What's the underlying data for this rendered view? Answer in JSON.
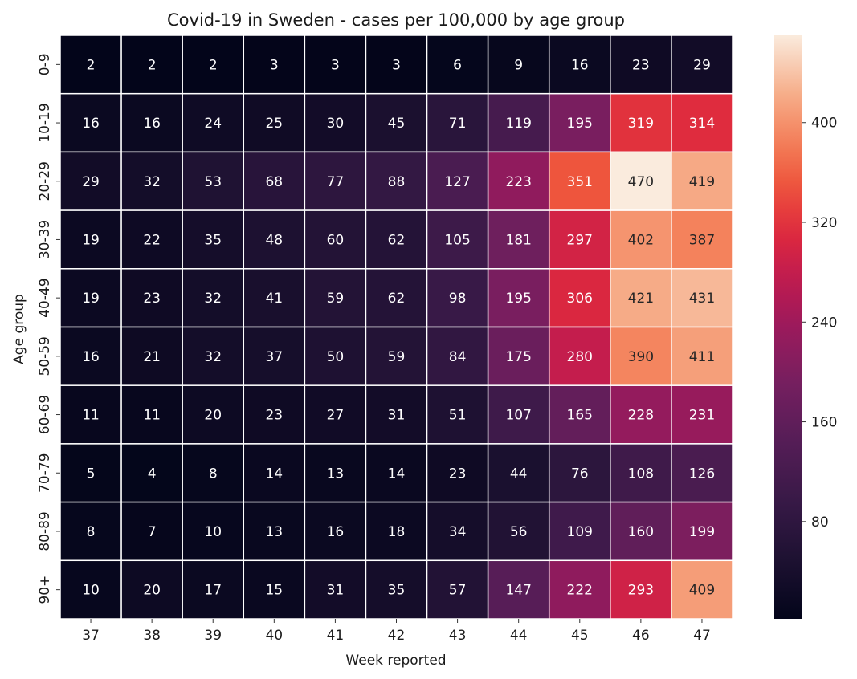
{
  "chart_data": {
    "type": "heatmap",
    "title": "Covid-19 in Sweden - cases per 100,000 by age group",
    "xlabel": "Week reported",
    "ylabel": "Age group",
    "x_categories": [
      "37",
      "38",
      "39",
      "40",
      "41",
      "42",
      "43",
      "44",
      "45",
      "46",
      "47"
    ],
    "y_categories": [
      "0-9",
      "10-19",
      "20-29",
      "30-39",
      "40-49",
      "50-59",
      "60-69",
      "70-79",
      "80-89",
      "90+"
    ],
    "values": [
      [
        2,
        2,
        2,
        3,
        3,
        3,
        6,
        9,
        16,
        23,
        29
      ],
      [
        16,
        16,
        24,
        25,
        30,
        45,
        71,
        119,
        195,
        319,
        314
      ],
      [
        29,
        32,
        53,
        68,
        77,
        88,
        127,
        223,
        351,
        470,
        419
      ],
      [
        19,
        22,
        35,
        48,
        60,
        62,
        105,
        181,
        297,
        402,
        387
      ],
      [
        19,
        23,
        32,
        41,
        59,
        62,
        98,
        195,
        306,
        421,
        431
      ],
      [
        16,
        21,
        32,
        37,
        50,
        59,
        84,
        175,
        280,
        390,
        411
      ],
      [
        11,
        11,
        20,
        23,
        27,
        31,
        51,
        107,
        165,
        228,
        231
      ],
      [
        5,
        4,
        8,
        14,
        13,
        14,
        23,
        44,
        76,
        108,
        126
      ],
      [
        8,
        7,
        10,
        13,
        16,
        18,
        34,
        56,
        109,
        160,
        199
      ],
      [
        10,
        20,
        17,
        15,
        31,
        35,
        57,
        147,
        222,
        293,
        409
      ]
    ],
    "colorbar": {
      "min": 2,
      "max": 470,
      "ticks": [
        80,
        160,
        240,
        320,
        400
      ],
      "colormap": "rocket"
    },
    "grid": true,
    "cell_border_color": "#ffffff",
    "annotation_colors": {
      "light": "#ffffff",
      "dark": "#262626"
    }
  }
}
